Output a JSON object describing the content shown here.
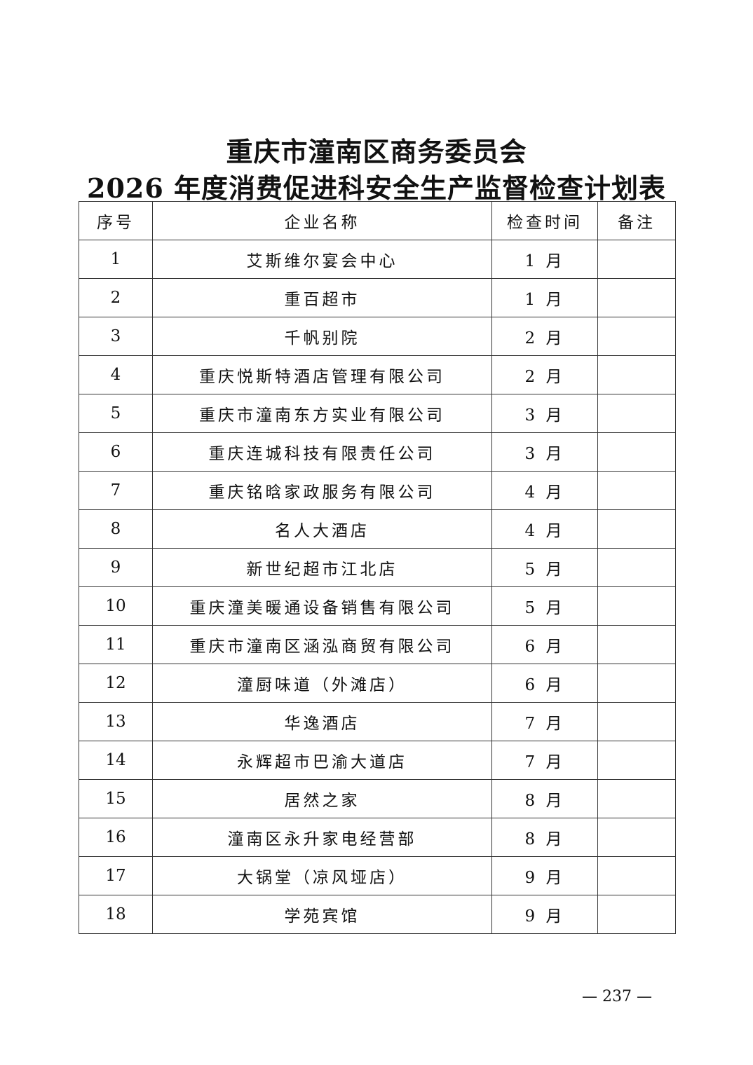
{
  "title": {
    "line1": "重庆市潼南区商务委员会",
    "line2": "2026 年度消费促进科安全生产监督检查计划表"
  },
  "table": {
    "headers": [
      "序号",
      "企业名称",
      "检查时间",
      "备注"
    ],
    "rows": [
      {
        "no": "1",
        "name": "艾斯维尔宴会中心",
        "time": "1 月",
        "note": ""
      },
      {
        "no": "2",
        "name": "重百超市",
        "time": "1 月",
        "note": ""
      },
      {
        "no": "3",
        "name": "千帆别院",
        "time": "2 月",
        "note": ""
      },
      {
        "no": "4",
        "name": "重庆悦斯特酒店管理有限公司",
        "time": "2 月",
        "note": ""
      },
      {
        "no": "5",
        "name": "重庆市潼南东方实业有限公司",
        "time": "3 月",
        "note": ""
      },
      {
        "no": "6",
        "name": "重庆连城科技有限责任公司",
        "time": "3 月",
        "note": ""
      },
      {
        "no": "7",
        "name": "重庆铭晗家政服务有限公司",
        "time": "4 月",
        "note": ""
      },
      {
        "no": "8",
        "name": "名人大酒店",
        "time": "4 月",
        "note": ""
      },
      {
        "no": "9",
        "name": "新世纪超市江北店",
        "time": "5 月",
        "note": ""
      },
      {
        "no": "10",
        "name": "重庆潼美暖通设备销售有限公司",
        "time": "5 月",
        "note": ""
      },
      {
        "no": "11",
        "name": "重庆市潼南区涵泓商贸有限公司",
        "time": "6 月",
        "note": ""
      },
      {
        "no": "12",
        "name": "潼厨味道（外滩店）",
        "time": "6 月",
        "note": ""
      },
      {
        "no": "13",
        "name": "华逸酒店",
        "time": "7 月",
        "note": ""
      },
      {
        "no": "14",
        "name": "永辉超市巴渝大道店",
        "time": "7 月",
        "note": ""
      },
      {
        "no": "15",
        "name": "居然之家",
        "time": "8 月",
        "note": ""
      },
      {
        "no": "16",
        "name": "潼南区永升家电经营部",
        "time": "8 月",
        "note": ""
      },
      {
        "no": "17",
        "name": "大锅堂（凉风垭店）",
        "time": "9 月",
        "note": ""
      },
      {
        "no": "18",
        "name": "学苑宾馆",
        "time": "9 月",
        "note": ""
      }
    ]
  },
  "page_number": "— 237 —"
}
